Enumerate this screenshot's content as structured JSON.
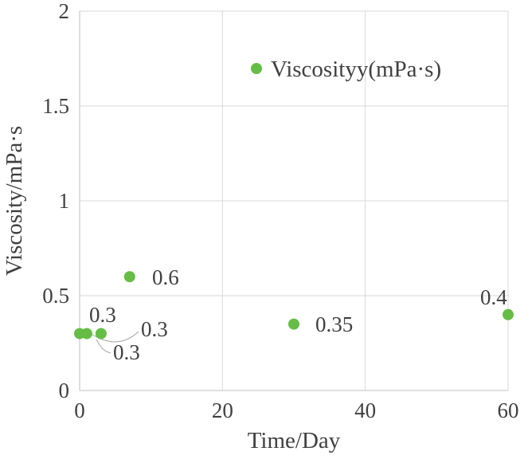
{
  "chart_data": {
    "type": "scatter",
    "title": "",
    "xlabel": "Time/Day",
    "ylabel": "Viscosity/mPa·s",
    "xlim": [
      0,
      60
    ],
    "ylim": [
      0,
      2
    ],
    "xticks": [
      0,
      20,
      40,
      60
    ],
    "yticks": [
      0,
      0.5,
      1,
      1.5,
      2
    ],
    "grid": true,
    "legend": {
      "label": "Viscosityy(mPa·s)",
      "position": "inside-top-center"
    },
    "series": [
      {
        "name": "Viscosityy(mPa·s)",
        "color": "#65bd45",
        "points": [
          {
            "x": 0,
            "y": 0.3,
            "label": "0.3"
          },
          {
            "x": 1,
            "y": 0.3,
            "label": "0.3"
          },
          {
            "x": 3,
            "y": 0.3,
            "label": "0.3"
          },
          {
            "x": 7,
            "y": 0.6,
            "label": "0.6"
          },
          {
            "x": 30,
            "y": 0.35,
            "label": "0.35"
          },
          {
            "x": 60,
            "y": 0.4,
            "label": "0.4"
          }
        ]
      }
    ],
    "colors": {
      "text": "#404040",
      "grid": "#d9d9d9",
      "axis": "#bfbfbf",
      "leader": "#a6a6a6",
      "marker": "#65bd45"
    }
  }
}
